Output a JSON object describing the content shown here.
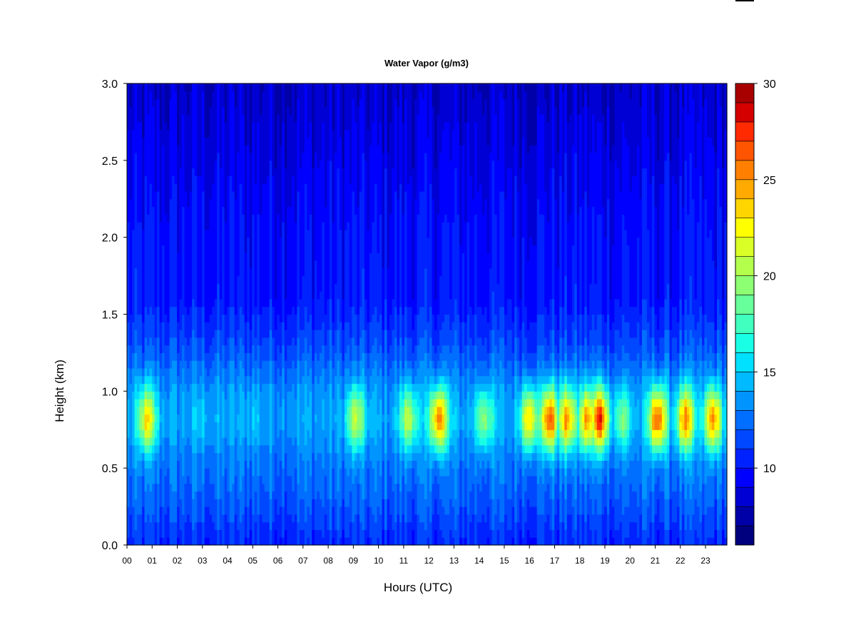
{
  "chart_data": {
    "type": "heatmap",
    "title": "Water Vapor (g/m3)",
    "xlabel": "Hours (UTC)",
    "ylabel": "Height (km)",
    "xlim": [
      0,
      23.85
    ],
    "ylim": [
      0.0,
      3.0
    ],
    "x_ticks": [
      0,
      1,
      2,
      3,
      4,
      5,
      6,
      7,
      8,
      9,
      10,
      11,
      12,
      13,
      14,
      15,
      16,
      17,
      18,
      19,
      20,
      21,
      22,
      23
    ],
    "x_tick_labels": [
      "00",
      "01",
      "02",
      "03",
      "04",
      "05",
      "06",
      "07",
      "08",
      "09",
      "10",
      "11",
      "12",
      "13",
      "14",
      "15",
      "16",
      "17",
      "18",
      "19",
      "20",
      "21",
      "22",
      "23"
    ],
    "y_ticks": [
      0.0,
      0.5,
      1.0,
      1.5,
      2.0,
      2.5,
      3.0
    ],
    "y_tick_labels": [
      "0.0",
      "0.5",
      "1.0",
      "1.5",
      "2.0",
      "2.5",
      "3.0"
    ],
    "colorbar": {
      "min": 6,
      "max": 30,
      "levels": [
        6,
        7,
        8,
        9,
        10,
        11,
        12,
        13,
        14,
        15,
        16,
        17,
        18,
        19,
        20,
        21,
        22,
        23,
        24,
        25,
        26,
        27,
        28,
        29,
        30
      ],
      "tick_values": [
        10,
        15,
        20,
        25,
        30
      ],
      "tick_labels": [
        "10",
        "15",
        "20",
        "25",
        "30"
      ],
      "colors": [
        "#00007f",
        "#0000a8",
        "#0000d4",
        "#0000ff",
        "#0022ff",
        "#0048ff",
        "#006eff",
        "#0094ff",
        "#00baff",
        "#00e0ff",
        "#19ffe6",
        "#40ffbf",
        "#66ff99",
        "#8cff73",
        "#b3ff4c",
        "#d9ff26",
        "#ffff00",
        "#ffd500",
        "#ffaa00",
        "#ff8000",
        "#ff5500",
        "#ff2a00",
        "#d40000",
        "#a80000"
      ]
    },
    "field": {
      "description_units": "g/m3",
      "base_profile_heights_km": [
        0.0,
        0.3,
        0.6,
        0.8,
        1.0,
        1.3,
        1.6,
        2.0,
        2.5,
        3.0
      ],
      "base_profile_values": [
        10.5,
        12.0,
        13.0,
        14.0,
        13.5,
        11.5,
        10.0,
        9.8,
        9.0,
        8.2
      ],
      "layer_peak_height_km": 0.82,
      "layer_peaks_by_hour": [
        {
          "hour": 0.8,
          "value": 23
        },
        {
          "hour": 3.0,
          "value": 15
        },
        {
          "hour": 5.0,
          "value": 15
        },
        {
          "hour": 9.1,
          "value": 21
        },
        {
          "hour": 11.2,
          "value": 21
        },
        {
          "hour": 12.4,
          "value": 26
        },
        {
          "hour": 14.2,
          "value": 20
        },
        {
          "hour": 16.0,
          "value": 24
        },
        {
          "hour": 16.8,
          "value": 27
        },
        {
          "hour": 17.5,
          "value": 25
        },
        {
          "hour": 18.3,
          "value": 25
        },
        {
          "hour": 18.8,
          "value": 28
        },
        {
          "hour": 19.7,
          "value": 19
        },
        {
          "hour": 21.1,
          "value": 27
        },
        {
          "hour": 22.2,
          "value": 25
        },
        {
          "hour": 23.3,
          "value": 25
        }
      ]
    }
  }
}
